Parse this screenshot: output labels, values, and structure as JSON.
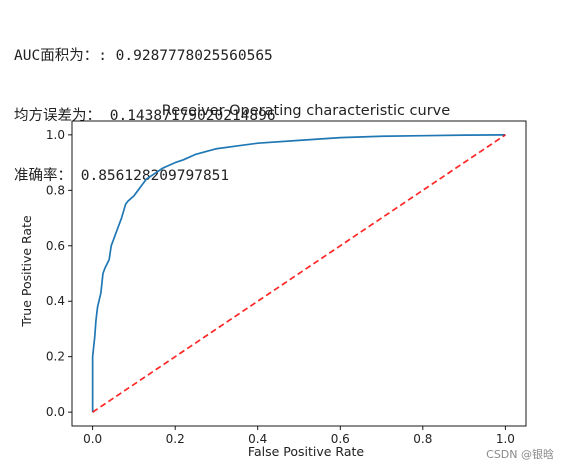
{
  "console_output": [
    "AUC面积为：: 0.9287778025560565",
    "均方误差为： 0.14387179020214896",
    "准确率： 0.856128209797851"
  ],
  "chart_data": {
    "type": "line",
    "title": "Receiver Operating characteristic curve",
    "xlabel": "False Positive Rate",
    "ylabel": "True Positive Rate",
    "xlim": [
      -0.05,
      1.05
    ],
    "ylim": [
      -0.05,
      1.05
    ],
    "xticks": [
      0.0,
      0.2,
      0.4,
      0.6,
      0.8,
      1.0
    ],
    "xtick_labels": [
      "0.0",
      "0.2",
      "0.4",
      "0.6",
      "0.8",
      "1.0"
    ],
    "yticks": [
      0.0,
      0.2,
      0.4,
      0.6,
      0.8,
      1.0
    ],
    "ytick_labels": [
      "0.0",
      "0.2",
      "0.4",
      "0.6",
      "0.8",
      "1.0"
    ],
    "grid": false,
    "series": [
      {
        "color": "#1f77b4",
        "style": "solid",
        "x": [
          0.0,
          0.0,
          0.005,
          0.008,
          0.012,
          0.02,
          0.025,
          0.03,
          0.04,
          0.045,
          0.055,
          0.06,
          0.07,
          0.08,
          0.085,
          0.1,
          0.11,
          0.12,
          0.13,
          0.15,
          0.17,
          0.2,
          0.22,
          0.25,
          0.3,
          0.35,
          0.4,
          0.5,
          0.6,
          0.7,
          0.8,
          0.9,
          1.0
        ],
        "y": [
          0.0,
          0.2,
          0.27,
          0.33,
          0.38,
          0.43,
          0.5,
          0.52,
          0.55,
          0.6,
          0.64,
          0.66,
          0.7,
          0.75,
          0.76,
          0.78,
          0.8,
          0.82,
          0.84,
          0.86,
          0.88,
          0.9,
          0.91,
          0.93,
          0.95,
          0.96,
          0.97,
          0.98,
          0.99,
          0.995,
          0.997,
          0.999,
          1.0
        ]
      },
      {
        "color": "#ff0000",
        "style": "dashed",
        "x": [
          0.0,
          1.0
        ],
        "y": [
          0.0,
          1.0
        ]
      }
    ]
  },
  "watermark": "CSDN @银晗"
}
